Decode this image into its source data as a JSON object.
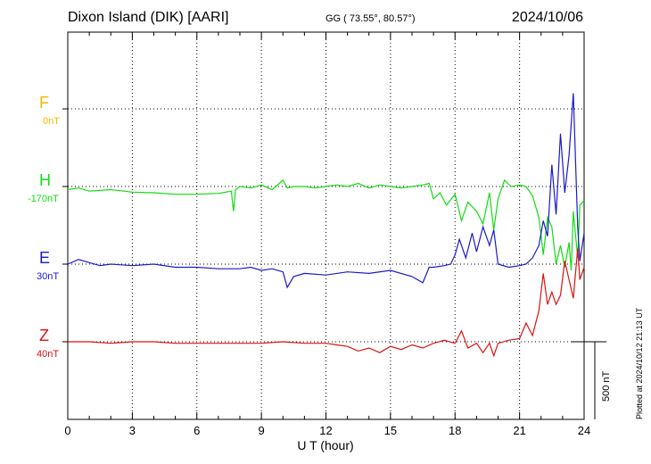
{
  "header": {
    "station": "Dixon Island (DIK)  [AARI]",
    "coords": "GG ( 73.55°,  80.57°)",
    "date": "2024/10/06"
  },
  "components": [
    {
      "letter": "F",
      "baseline": "0nT",
      "color": "#f5b800"
    },
    {
      "letter": "H",
      "baseline": "-170nT",
      "color": "#11dd11"
    },
    {
      "letter": "E",
      "baseline": "30nT",
      "color": "#1a1acc"
    },
    {
      "letter": "Z",
      "baseline": "40nT",
      "color": "#dd1111"
    }
  ],
  "scale_label": "500 nT",
  "plotted_note": "Plotted at 2024/10/12 21:13 UT",
  "chart_data": {
    "type": "line",
    "xlabel": "U T (hour)",
    "xlim": [
      0,
      24
    ],
    "xticks": [
      0,
      3,
      6,
      9,
      12,
      15,
      18,
      21,
      24
    ],
    "grid": true,
    "series": [
      {
        "name": "H",
        "color": "#11dd11",
        "baseline_nT": -170,
        "x": [
          0,
          0.5,
          1,
          2,
          3,
          4,
          5,
          6,
          7,
          7.6,
          7.7,
          7.8,
          8,
          8.5,
          9,
          9.5,
          10,
          10.2,
          10.5,
          11,
          11.5,
          12,
          12.5,
          13,
          13.5,
          14,
          14.5,
          15,
          15.5,
          16,
          16.5,
          16.8,
          17,
          17.3,
          17.6,
          18,
          18.3,
          18.6,
          19,
          19.3,
          19.6,
          19.8,
          20,
          20.3,
          20.6,
          21,
          21.3,
          21.6,
          21.9,
          22,
          22.1,
          22.3,
          22.5,
          22.7,
          22.9,
          23.1,
          23.3,
          23.4,
          23.5,
          23.7,
          23.8,
          24
        ],
        "y": [
          -10,
          -5,
          -15,
          -10,
          -18,
          -20,
          -25,
          -25,
          -22,
          -15,
          -80,
          -10,
          0,
          -5,
          5,
          -10,
          20,
          -5,
          0,
          0,
          -5,
          0,
          5,
          0,
          10,
          -5,
          5,
          0,
          -5,
          0,
          5,
          10,
          -40,
          -20,
          -60,
          -25,
          -110,
          -50,
          -80,
          -120,
          -20,
          -140,
          -40,
          20,
          0,
          5,
          0,
          -30,
          -100,
          -160,
          -220,
          -100,
          -130,
          -250,
          -190,
          -260,
          -180,
          -270,
          -80,
          -230,
          -60,
          -45
        ]
      },
      {
        "name": "E",
        "color": "#1a1acc",
        "baseline_nT": 30,
        "x": [
          0,
          0.5,
          1,
          1.5,
          2,
          3,
          4,
          5,
          6,
          7,
          8,
          8.5,
          9,
          9.5,
          10,
          10.2,
          10.5,
          11,
          12,
          13,
          14,
          15,
          16,
          16.5,
          16.8,
          17,
          17.5,
          17.8,
          18,
          18.2,
          18.5,
          18.8,
          19,
          19.3,
          19.6,
          19.8,
          20,
          20.5,
          21,
          21.3,
          21.6,
          21.9,
          22.1,
          22.3,
          22.5,
          22.7,
          22.9,
          23.1,
          23.3,
          23.5,
          23.7,
          23.8,
          24
        ],
        "y": [
          0,
          15,
          5,
          -5,
          0,
          -5,
          0,
          -10,
          -10,
          -15,
          -15,
          -10,
          -20,
          -15,
          -25,
          -75,
          -40,
          -30,
          -35,
          -25,
          -30,
          -20,
          -40,
          -60,
          -10,
          -10,
          -5,
          0,
          30,
          80,
          20,
          100,
          40,
          120,
          60,
          110,
          0,
          -10,
          -5,
          0,
          20,
          60,
          140,
          90,
          320,
          160,
          420,
          230,
          350,
          550,
          120,
          10,
          100
        ]
      },
      {
        "name": "Z",
        "color": "#dd1111",
        "baseline_nT": 40,
        "x": [
          0,
          1,
          2,
          3,
          4,
          5,
          6,
          7,
          8,
          9,
          10,
          11,
          12,
          12.5,
          13,
          13.5,
          14,
          14.5,
          15,
          15.5,
          16,
          16.5,
          17,
          17.5,
          18,
          18.3,
          18.6,
          19,
          19.3,
          19.6,
          19.8,
          20,
          20.5,
          21,
          21.3,
          21.6,
          21.9,
          22.1,
          22.3,
          22.5,
          22.7,
          22.9,
          23.1,
          23.3,
          23.5,
          23.7,
          23.8,
          24
        ],
        "y": [
          0,
          0,
          -5,
          0,
          0,
          -5,
          -5,
          -5,
          -5,
          -5,
          0,
          -5,
          -5,
          -10,
          -15,
          -30,
          -20,
          -35,
          -15,
          -25,
          -10,
          -20,
          -5,
          5,
          -5,
          35,
          -20,
          -5,
          -35,
          -5,
          -45,
          -5,
          5,
          10,
          60,
          20,
          100,
          220,
          120,
          160,
          120,
          150,
          260,
          200,
          140,
          300,
          200,
          240
        ]
      }
    ]
  }
}
